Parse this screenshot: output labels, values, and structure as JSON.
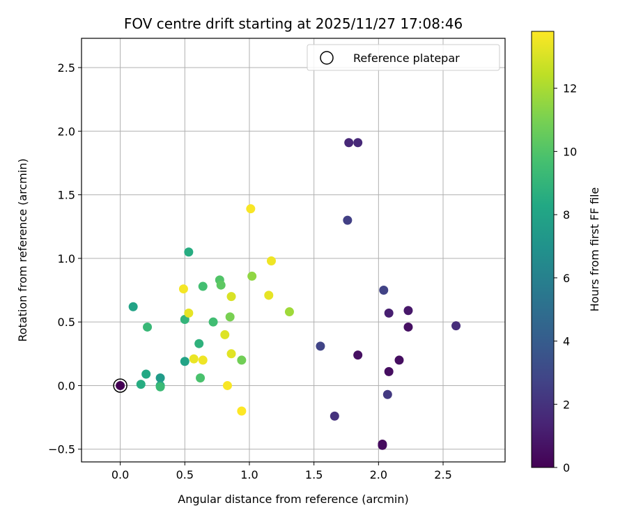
{
  "chart_data": {
    "type": "scatter",
    "title": "FOV centre drift starting at 2025/11/27 17:08:46",
    "xlabel": "Angular distance from reference (arcmin)",
    "ylabel": "Rotation from reference (arcmin)",
    "xlim": [
      -0.3,
      2.98
    ],
    "ylim": [
      -0.6,
      2.73
    ],
    "xticks": [
      0.0,
      0.5,
      1.0,
      1.5,
      2.0,
      2.5
    ],
    "xtick_labels": [
      "0.0",
      "0.5",
      "1.0",
      "1.5",
      "2.0",
      "2.5"
    ],
    "yticks": [
      -0.5,
      0.0,
      0.5,
      1.0,
      1.5,
      2.0,
      2.5
    ],
    "ytick_labels": [
      "−0.5",
      "0.0",
      "0.5",
      "1.0",
      "1.5",
      "2.0",
      "2.5"
    ],
    "grid": true,
    "legend": {
      "position": "top-right",
      "entries": [
        "Reference platepar"
      ]
    },
    "colorbar": {
      "label": "Hours from first FF file",
      "range": [
        0,
        13.8
      ],
      "ticks": [
        0,
        2,
        4,
        6,
        8,
        10,
        12
      ],
      "tick_labels": [
        "0",
        "2",
        "4",
        "6",
        "8",
        "10",
        "12"
      ],
      "colormap": "viridis"
    },
    "reference_point": {
      "x": 0.0,
      "y": 0.0
    },
    "points": [
      {
        "x": 0.0,
        "y": 0.0,
        "h": 0.0
      },
      {
        "x": 2.03,
        "y": -0.46,
        "h": 0.3
      },
      {
        "x": 2.03,
        "y": -0.47,
        "h": 0.4
      },
      {
        "x": 2.08,
        "y": 0.11,
        "h": 0.5
      },
      {
        "x": 2.16,
        "y": 0.2,
        "h": 0.5
      },
      {
        "x": 1.84,
        "y": 0.24,
        "h": 0.6
      },
      {
        "x": 2.23,
        "y": 0.46,
        "h": 0.6
      },
      {
        "x": 2.23,
        "y": 0.59,
        "h": 0.9
      },
      {
        "x": 2.08,
        "y": 0.57,
        "h": 1.2
      },
      {
        "x": 1.77,
        "y": 1.91,
        "h": 1.5
      },
      {
        "x": 1.84,
        "y": 1.91,
        "h": 1.6
      },
      {
        "x": 2.6,
        "y": 0.47,
        "h": 1.8
      },
      {
        "x": 1.66,
        "y": -0.24,
        "h": 2.0
      },
      {
        "x": 2.07,
        "y": -0.07,
        "h": 2.3
      },
      {
        "x": 1.76,
        "y": 1.3,
        "h": 2.6
      },
      {
        "x": 2.04,
        "y": 0.75,
        "h": 2.7
      },
      {
        "x": 1.55,
        "y": 0.31,
        "h": 2.8
      },
      {
        "x": 0.31,
        "y": 0.06,
        "h": 7.5
      },
      {
        "x": 0.31,
        "y": 0.0,
        "h": 8.0
      },
      {
        "x": 0.5,
        "y": 0.19,
        "h": 8.0
      },
      {
        "x": 0.1,
        "y": 0.62,
        "h": 8.0
      },
      {
        "x": 0.2,
        "y": 0.09,
        "h": 8.3
      },
      {
        "x": 0.16,
        "y": 0.01,
        "h": 8.5
      },
      {
        "x": 0.53,
        "y": 1.05,
        "h": 8.5
      },
      {
        "x": 0.61,
        "y": 0.33,
        "h": 8.8
      },
      {
        "x": 0.5,
        "y": 0.52,
        "h": 9.0
      },
      {
        "x": 0.21,
        "y": 0.46,
        "h": 9.2
      },
      {
        "x": 0.31,
        "y": -0.01,
        "h": 9.3
      },
      {
        "x": 0.72,
        "y": 0.5,
        "h": 9.5
      },
      {
        "x": 0.64,
        "y": 0.78,
        "h": 9.6
      },
      {
        "x": 0.62,
        "y": 0.06,
        "h": 9.8
      },
      {
        "x": 0.77,
        "y": 0.83,
        "h": 10.0
      },
      {
        "x": 0.78,
        "y": 0.79,
        "h": 10.3
      },
      {
        "x": 0.94,
        "y": 0.2,
        "h": 10.8
      },
      {
        "x": 0.85,
        "y": 0.54,
        "h": 11.0
      },
      {
        "x": 1.02,
        "y": 0.86,
        "h": 11.5
      },
      {
        "x": 1.31,
        "y": 0.58,
        "h": 11.8
      },
      {
        "x": 0.86,
        "y": 0.7,
        "h": 13.0
      },
      {
        "x": 0.81,
        "y": 0.4,
        "h": 13.1
      },
      {
        "x": 0.86,
        "y": 0.25,
        "h": 13.2
      },
      {
        "x": 0.53,
        "y": 0.57,
        "h": 13.3
      },
      {
        "x": 1.15,
        "y": 0.71,
        "h": 13.3
      },
      {
        "x": 0.57,
        "y": 0.21,
        "h": 13.4
      },
      {
        "x": 0.64,
        "y": 0.2,
        "h": 13.5
      },
      {
        "x": 1.17,
        "y": 0.98,
        "h": 13.5
      },
      {
        "x": 0.49,
        "y": 0.76,
        "h": 13.6
      },
      {
        "x": 1.01,
        "y": 1.39,
        "h": 13.7
      },
      {
        "x": 0.83,
        "y": 0.0,
        "h": 13.7
      },
      {
        "x": 0.94,
        "y": -0.2,
        "h": 13.8
      }
    ]
  }
}
